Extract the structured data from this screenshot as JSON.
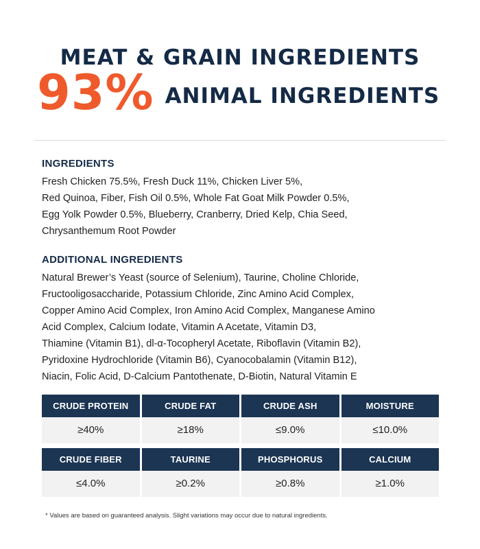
{
  "header": {
    "title": "MEAT & GRAIN INGREDIENTS",
    "percent": "93%",
    "percent_label": "ANIMAL INGREDIENTS"
  },
  "ingredients": {
    "heading": "INGREDIENTS",
    "lines": [
      "Fresh Chicken 75.5%, Fresh Duck 11%, Chicken Liver 5%,",
      "Red Quinoa, Fiber, Fish Oil 0.5%, Whole Fat Goat Milk Powder 0.5%,",
      "Egg Yolk Powder 0.5%, Blueberry, Cranberry, Dried Kelp, Chia Seed,",
      "Chrysanthemum Root Powder"
    ]
  },
  "additional": {
    "heading": "ADDITIONAL INGREDIENTS",
    "lines": [
      "Natural Brewer’s Yeast (source of Selenium), Taurine, Choline Chloride,",
      "Fructooligosaccharide, Potassium Chloride, Zinc Amino Acid Complex,",
      "Copper Amino Acid Complex, Iron Amino Acid Complex, Manganese Amino",
      "Acid Complex, Calcium Iodate, Vitamin A Acetate, Vitamin D3,",
      "Thiamine (Vitamin B1), dl-α-Tocopheryl Acetate, Riboflavin (Vitamin B2),",
      "Pyridoxine Hydrochloride (Vitamin B6), Cyanocobalamin (Vitamin B12),",
      "Niacin, Folic Acid, D-Calcium Pantothenate, D-Biotin, Natural Vitamin E"
    ]
  },
  "analysis": {
    "row1": [
      {
        "label": "CRUDE PROTEIN",
        "value": "≥40%"
      },
      {
        "label": "CRUDE FAT",
        "value": "≥18%"
      },
      {
        "label": "CRUDE ASH",
        "value": "≤9.0%"
      },
      {
        "label": "MOISTURE",
        "value": "≤10.0%"
      }
    ],
    "row2": [
      {
        "label": "CRUDE FIBER",
        "value": "≤4.0%"
      },
      {
        "label": "TAURINE",
        "value": "≥0.2%"
      },
      {
        "label": "PHOSPHORUS",
        "value": "≥0.8%"
      },
      {
        "label": "CALCIUM",
        "value": "≥1.0%"
      }
    ]
  },
  "footnote": "* Values are based on guaranteed analysis. Slight variations may occur due to natural ingredients."
}
